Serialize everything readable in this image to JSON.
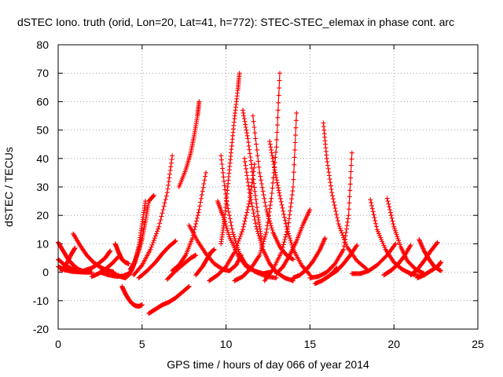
{
  "chart_data": {
    "type": "scatter",
    "title": "dSTEC Iono. truth (orid, Lon=20, Lat=41, h=772): STEC-STEC_elemax in phase cont. arc",
    "xlabel": "GPS time / hours of day 066 of year 2014",
    "ylabel": "dSTEC  / TECUs",
    "xlim": [
      0,
      25
    ],
    "ylim": [
      -20,
      80
    ],
    "xticks": [
      0,
      5,
      10,
      15,
      20,
      25
    ],
    "yticks": [
      -20,
      -10,
      0,
      10,
      20,
      30,
      40,
      50,
      60,
      70,
      80
    ],
    "grid": true,
    "marker": "plus",
    "color": "#ff0000",
    "series": [
      {
        "x": [
          0.0,
          0.3,
          0.6,
          0.9,
          1.2,
          1.5,
          1.8
        ],
        "y": [
          10.5,
          7.5,
          4.5,
          2.5,
          1.0,
          0.3,
          0.0
        ]
      },
      {
        "x": [
          0.0,
          0.4,
          0.8,
          1.2,
          1.6,
          2.0
        ],
        "y": [
          4.5,
          2.5,
          1.2,
          0.5,
          0.2,
          0.0
        ]
      },
      {
        "x": [
          0.0,
          0.4,
          0.8,
          1.2,
          1.6,
          2.0
        ],
        "y": [
          2.0,
          0.8,
          0.3,
          0.1,
          0.0,
          0.0
        ]
      },
      {
        "x": [
          0.2,
          0.5,
          0.8,
          1.0
        ],
        "y": [
          0.5,
          3.0,
          6.5,
          8.5
        ]
      },
      {
        "x": [
          0.9,
          1.3,
          1.7,
          2.1,
          2.5,
          2.9,
          3.3
        ],
        "y": [
          13.5,
          9.5,
          6.0,
          3.5,
          1.8,
          0.7,
          0.1
        ]
      },
      {
        "x": [
          1.5,
          2.0,
          2.4,
          2.8,
          3.1
        ],
        "y": [
          0.5,
          1.5,
          3.0,
          5.0,
          7.5
        ]
      },
      {
        "x": [
          2.0,
          2.4,
          2.8,
          3.2,
          3.6
        ],
        "y": [
          -1.5,
          -0.5,
          1.0,
          3.0,
          5.5
        ]
      },
      {
        "x": [
          3.4,
          3.6,
          3.8,
          4.0,
          4.2
        ],
        "y": [
          10.0,
          7.0,
          4.5,
          3.5,
          3.0
        ]
      },
      {
        "x": [
          2.5,
          3.0,
          3.5,
          3.9,
          4.2
        ],
        "y": [
          0.0,
          -1.0,
          -1.5,
          -1.3,
          -0.5
        ]
      },
      {
        "x": [
          3.3,
          3.7,
          4.0,
          4.2,
          4.4,
          4.6,
          4.8,
          5.0,
          5.2
        ],
        "y": [
          -0.5,
          -1.5,
          -2.0,
          -1.0,
          1.0,
          4.0,
          9.0,
          17.0,
          25.0
        ]
      },
      {
        "x": [
          4.3,
          4.5,
          4.8,
          5.0,
          5.2,
          5.4,
          5.7
        ],
        "y": [
          1.0,
          3.0,
          7.5,
          12.0,
          18.0,
          25.0,
          27.0
        ]
      },
      {
        "x": [
          3.8,
          4.0,
          4.2,
          4.4,
          4.6,
          4.8,
          5.0
        ],
        "y": [
          -5.0,
          -7.5,
          -9.5,
          -11.0,
          -11.8,
          -12.0,
          -11.5
        ]
      },
      {
        "x": [
          5.4,
          5.8,
          6.2,
          6.6,
          7.0,
          7.4,
          7.8
        ],
        "y": [
          -14.5,
          -13.0,
          -11.5,
          -10.5,
          -9.0,
          -7.0,
          -5.0
        ]
      },
      {
        "x": [
          4.8,
          5.3,
          5.8,
          6.2,
          6.6,
          7.0
        ],
        "y": [
          -2.0,
          0.5,
          3.5,
          6.5,
          9.0,
          11.0
        ]
      },
      {
        "x": [
          4.5,
          5.0,
          5.5,
          6.0,
          6.5,
          6.8
        ],
        "y": [
          -1.0,
          2.5,
          8.0,
          16.0,
          28.0,
          41.0
        ]
      },
      {
        "x": [
          6.5,
          7.0,
          7.5,
          7.9,
          8.2
        ],
        "y": [
          -2.5,
          0.5,
          3.0,
          5.0,
          6.0
        ]
      },
      {
        "x": [
          7.2,
          7.6,
          7.9,
          8.1,
          8.3,
          8.4
        ],
        "y": [
          30.0,
          36.0,
          42.0,
          48.0,
          55.0,
          60.0
        ]
      },
      {
        "x": [
          6.8,
          7.2,
          7.6,
          8.0,
          8.4,
          8.8
        ],
        "y": [
          0.5,
          2.5,
          6.0,
          12.0,
          22.0,
          35.0
        ]
      },
      {
        "x": [
          7.8,
          8.3,
          8.8,
          9.3,
          9.8,
          10.2,
          10.6,
          10.9
        ],
        "y": [
          16.5,
          11.0,
          6.5,
          3.0,
          1.0,
          0.5,
          2.5,
          6.0
        ]
      },
      {
        "x": [
          8.2,
          8.6,
          8.9,
          9.1,
          9.3
        ],
        "y": [
          -1.0,
          2.0,
          5.0,
          7.0,
          8.0
        ]
      },
      {
        "x": [
          9.7,
          9.9,
          10.1,
          10.3,
          10.5,
          10.7,
          10.8
        ],
        "y": [
          10.0,
          18.0,
          30.0,
          42.0,
          54.0,
          64.0,
          70.0
        ]
      },
      {
        "x": [
          9.7,
          10.0,
          10.4,
          10.8,
          11.2,
          11.7,
          12.2,
          12.6
        ],
        "y": [
          41.0,
          26.0,
          14.0,
          6.5,
          2.5,
          0.5,
          -0.5,
          0.0
        ]
      },
      {
        "x": [
          9.5,
          9.8,
          10.2,
          10.7,
          11.2,
          11.8,
          12.4,
          13.0
        ],
        "y": [
          25.0,
          20.0,
          12.5,
          6.0,
          2.0,
          0.0,
          -1.5,
          -2.0
        ]
      },
      {
        "x": [
          9.0,
          9.5,
          10.0,
          10.5,
          11.0,
          11.4,
          11.7
        ],
        "y": [
          -3.0,
          -1.0,
          2.0,
          7.0,
          15.0,
          25.0,
          38.0
        ]
      },
      {
        "x": [
          11.0,
          11.3,
          11.6,
          11.9,
          12.1
        ],
        "y": [
          57.0,
          47.0,
          34.0,
          20.0,
          12.0
        ]
      },
      {
        "x": [
          11.1,
          11.4,
          11.8,
          12.2,
          12.6,
          13.0,
          13.5,
          14.0
        ],
        "y": [
          40.0,
          28.0,
          16.0,
          8.0,
          3.0,
          0.0,
          -2.0,
          -3.0
        ]
      },
      {
        "x": [
          10.5,
          11.0,
          11.5,
          12.0,
          12.4,
          12.7,
          13.0,
          13.2
        ],
        "y": [
          -3.0,
          -1.5,
          1.5,
          6.0,
          14.0,
          26.0,
          44.0,
          70.0
        ]
      },
      {
        "x": [
          11.6,
          12.0,
          12.4,
          12.8,
          13.2,
          13.6,
          14.0
        ],
        "y": [
          55.0,
          35.0,
          22.0,
          14.0,
          9.0,
          6.0,
          4.5
        ]
      },
      {
        "x": [
          12.6,
          12.9,
          13.2,
          13.6,
          14.0,
          14.5,
          15.0
        ],
        "y": [
          46.0,
          36.0,
          27.0,
          16.0,
          8.0,
          2.5,
          -1.0
        ]
      },
      {
        "x": [
          12.3,
          12.8,
          13.3,
          13.7,
          14.0,
          14.2
        ],
        "y": [
          -3.0,
          1.0,
          7.0,
          16.0,
          30.0,
          56.0
        ]
      },
      {
        "x": [
          13.0,
          13.4,
          13.8,
          14.2,
          14.6,
          15.0
        ],
        "y": [
          -0.5,
          2.0,
          6.0,
          11.0,
          17.0,
          22.0
        ]
      },
      {
        "x": [
          14.0,
          14.4,
          14.8,
          15.2,
          15.6,
          15.9
        ],
        "y": [
          -2.0,
          -1.0,
          1.0,
          4.0,
          8.0,
          12.0
        ]
      },
      {
        "x": [
          15.8,
          16.0,
          16.3,
          16.7,
          17.2,
          17.8,
          18.4
        ],
        "y": [
          52.5,
          40.0,
          28.0,
          17.0,
          9.0,
          4.0,
          1.0
        ]
      },
      {
        "x": [
          15.3,
          15.7,
          16.1,
          16.4,
          16.6
        ],
        "y": [
          -4.0,
          -3.0,
          -1.5,
          0.0,
          1.5
        ]
      },
      {
        "x": [
          15.0,
          15.5,
          16.0,
          16.5,
          17.0,
          17.3,
          17.5
        ],
        "y": [
          -2.0,
          -1.5,
          0.0,
          3.0,
          8.0,
          20.0,
          42.0
        ]
      },
      {
        "x": [
          16.2,
          16.6,
          17.0,
          17.4,
          17.8
        ],
        "y": [
          -1.0,
          0.5,
          3.0,
          6.0,
          9.5
        ]
      },
      {
        "x": [
          18.6,
          19.0,
          19.5,
          20.0,
          20.5,
          21.0,
          21.6
        ],
        "y": [
          25.5,
          15.0,
          8.0,
          3.5,
          1.0,
          -0.5,
          -1.5
        ]
      },
      {
        "x": [
          17.5,
          18.0,
          18.5,
          19.0,
          19.6,
          20.1
        ],
        "y": [
          -0.5,
          -0.5,
          0.5,
          2.5,
          6.0,
          10.0
        ]
      },
      {
        "x": [
          19.6,
          20.0,
          20.4,
          20.8,
          21.3,
          21.8
        ],
        "y": [
          26.0,
          16.0,
          9.0,
          4.0,
          1.0,
          -0.5
        ]
      },
      {
        "x": [
          19.4,
          19.8,
          20.2,
          20.6,
          21.0
        ],
        "y": [
          -1.0,
          0.5,
          2.5,
          5.5,
          9.5
        ]
      },
      {
        "x": [
          21.5,
          21.8,
          22.1,
          22.4,
          22.8
        ],
        "y": [
          11.5,
          7.5,
          4.5,
          2.0,
          0.5
        ]
      },
      {
        "x": [
          21.0,
          21.4,
          21.8,
          22.2,
          22.6
        ],
        "y": [
          -1.0,
          1.0,
          4.0,
          7.5,
          10.5
        ]
      },
      {
        "x": [
          21.4,
          21.8,
          22.2,
          22.6,
          22.8
        ],
        "y": [
          -2.0,
          -1.0,
          0.5,
          2.0,
          3.5
        ]
      }
    ]
  }
}
